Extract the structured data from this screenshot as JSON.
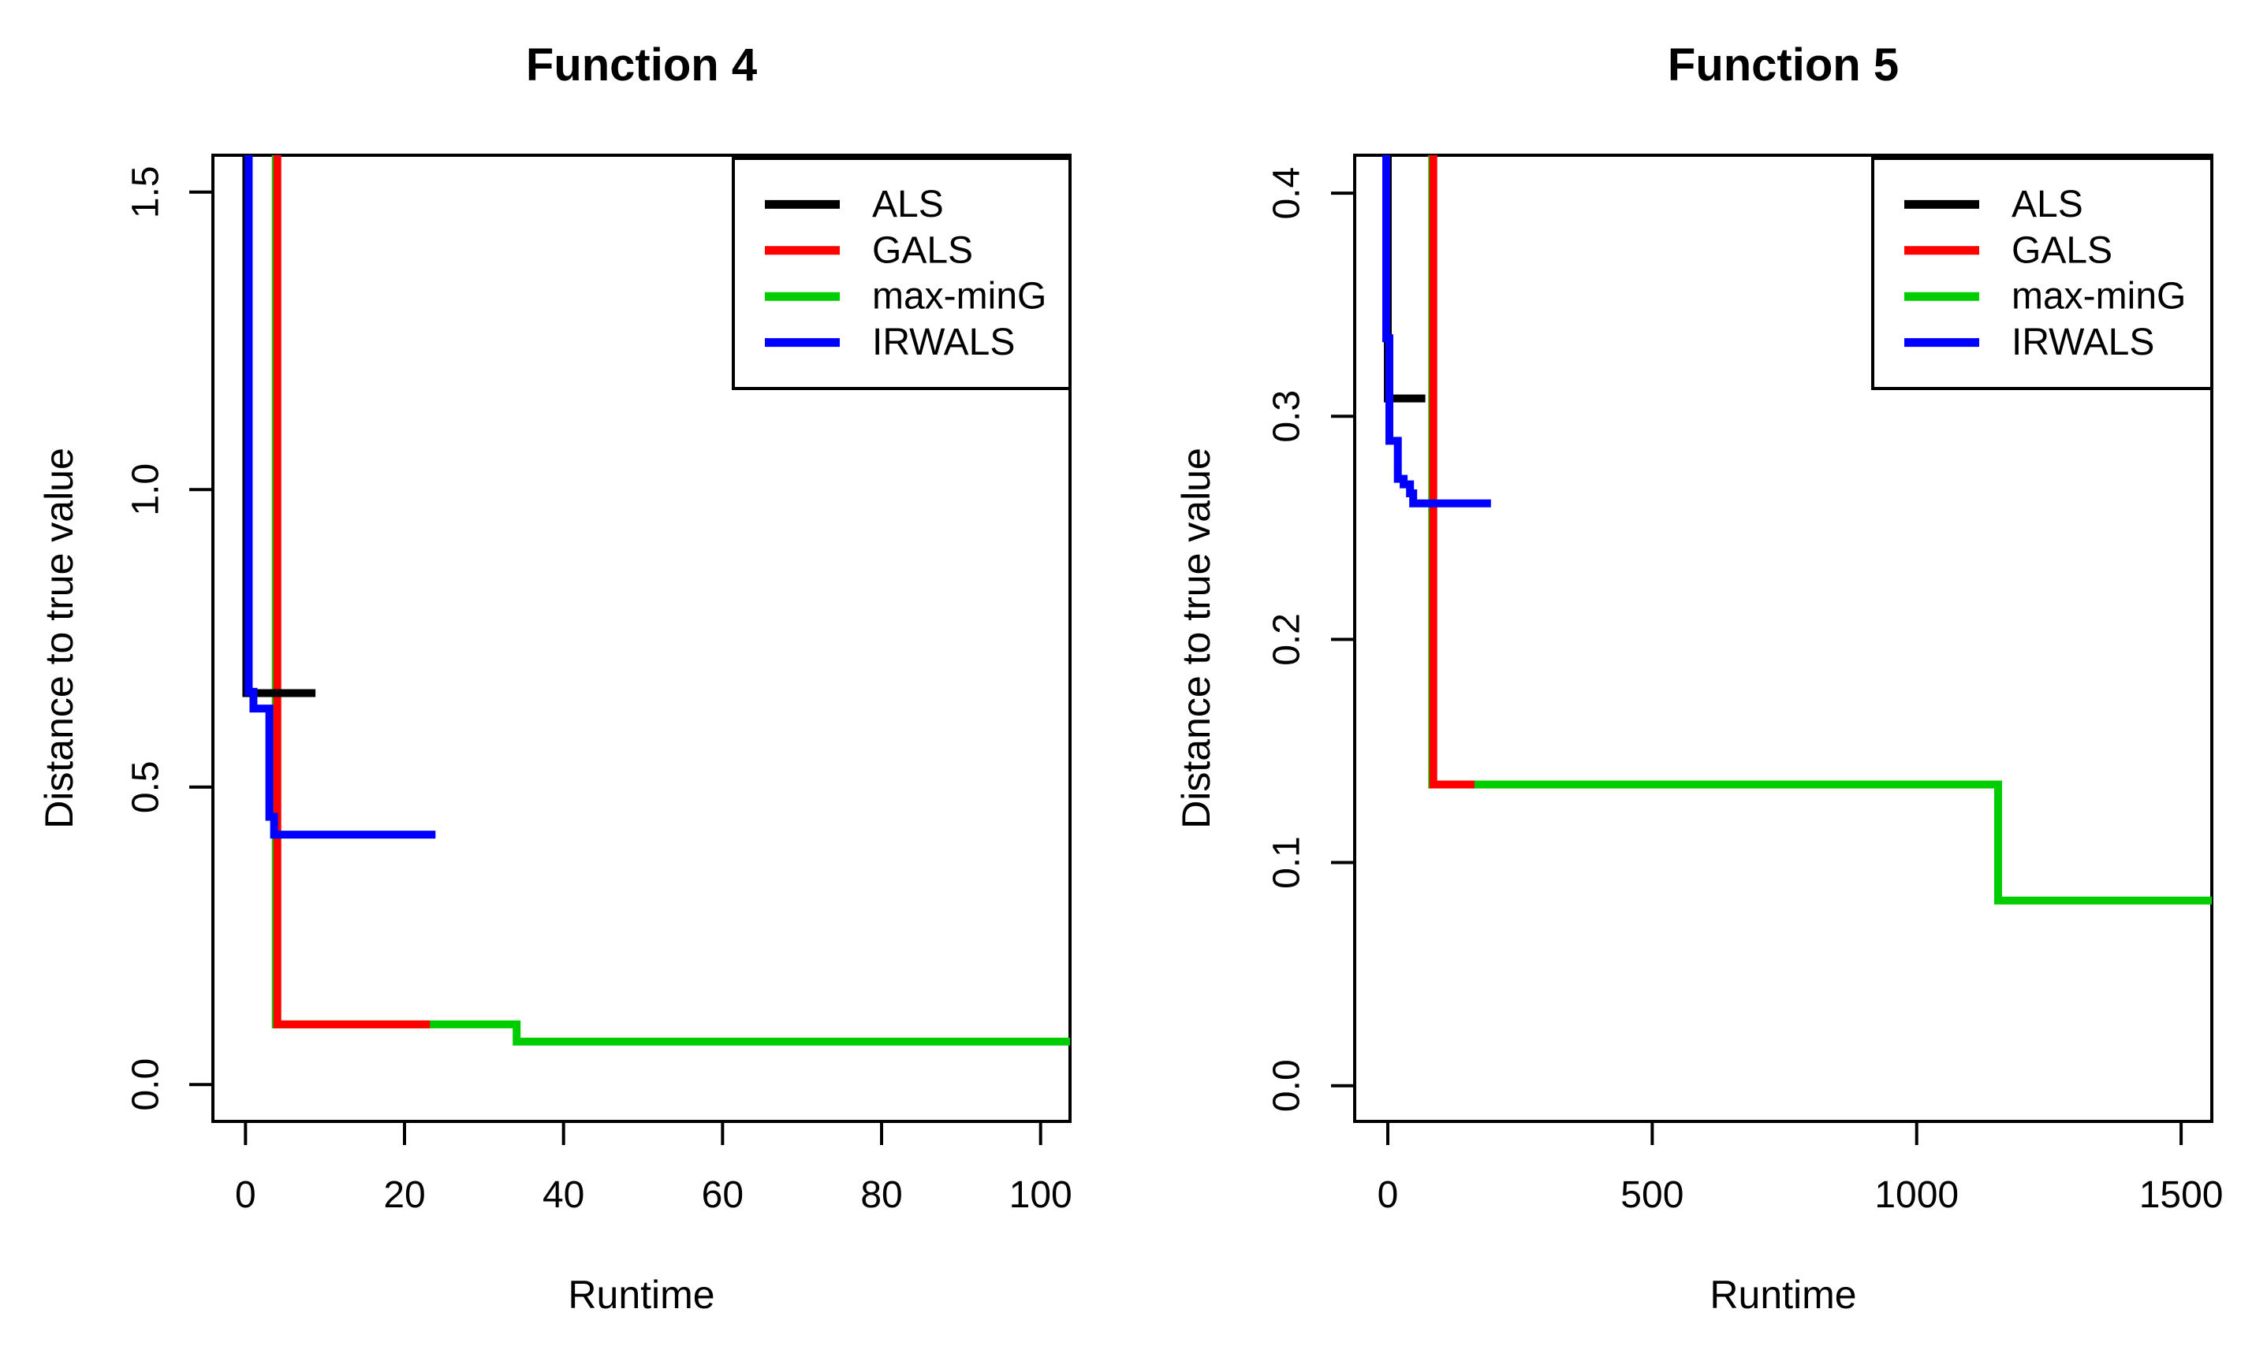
{
  "figure": {
    "background": "#FFFFFF",
    "text_color": "#000000"
  },
  "chart_data": [
    {
      "type": "line",
      "panel": "left",
      "title": "Function 4",
      "xlabel": "Runtime",
      "ylabel": "Distance to true value",
      "x_ticks": [
        0,
        20,
        40,
        60,
        80,
        100
      ],
      "x_tick_labels": [
        "0",
        "20",
        "40",
        "60",
        "80",
        "100"
      ],
      "y_ticks": [
        0,
        0.5,
        1.0,
        1.5
      ],
      "y_tick_labels": [
        "0.0",
        "0.5",
        "1.0",
        "1.5"
      ],
      "xlim": [
        -4.1,
        103.7
      ],
      "ylim": [
        -0.062,
        1.562
      ],
      "grid": false,
      "legend_position": "top-right",
      "legend": [
        {
          "label": "ALS",
          "color": "#000000"
        },
        {
          "label": "GALS",
          "color": "#FF0000"
        },
        {
          "label": "max-minG",
          "color": "#00CD00"
        },
        {
          "label": "IRWALS",
          "color": "#0000FF"
        }
      ],
      "series": [
        {
          "name": "max-minG",
          "color": "#00CD00",
          "points": [
            [
              3.8,
              1.562
            ],
            [
              3.8,
              0.101
            ],
            [
              34.1,
              0.101
            ],
            [
              34.1,
              0.072
            ],
            [
              103.7,
              0.072
            ]
          ]
        },
        {
          "name": "GALS",
          "color": "#FF0000",
          "points": [
            [
              4.0,
              1.562
            ],
            [
              4.0,
              0.101
            ],
            [
              23.2,
              0.101
            ]
          ]
        },
        {
          "name": "ALS",
          "color": "#000000",
          "points": [
            [
              0.1,
              1.562
            ],
            [
              0.1,
              0.658
            ],
            [
              8.8,
              0.658
            ]
          ]
        },
        {
          "name": "IRWALS",
          "color": "#0000FF",
          "points": [
            [
              0.4,
              1.562
            ],
            [
              0.4,
              0.66
            ],
            [
              1.0,
              0.66
            ],
            [
              1.0,
              0.632
            ],
            [
              3.0,
              0.632
            ],
            [
              3.0,
              0.45
            ],
            [
              3.6,
              0.45
            ],
            [
              3.6,
              0.42
            ],
            [
              23.9,
              0.42
            ]
          ]
        }
      ]
    },
    {
      "type": "line",
      "panel": "right",
      "title": "Function 5",
      "xlabel": "Runtime",
      "ylabel": "Distance to true value",
      "x_ticks": [
        0,
        500,
        1000,
        1500
      ],
      "x_tick_labels": [
        "0",
        "500",
        "1000",
        "1500"
      ],
      "y_ticks": [
        0,
        0.1,
        0.2,
        0.3,
        0.4
      ],
      "y_tick_labels": [
        "0.0",
        "0.1",
        "0.2",
        "0.3",
        "0.4"
      ],
      "xlim": [
        -62.6,
        1558
      ],
      "ylim": [
        -0.016,
        0.417
      ],
      "grid": false,
      "legend_position": "top-right",
      "legend": [
        {
          "label": "ALS",
          "color": "#000000"
        },
        {
          "label": "GALS",
          "color": "#FF0000"
        },
        {
          "label": "max-minG",
          "color": "#00CD00"
        },
        {
          "label": "IRWALS",
          "color": "#0000FF"
        }
      ],
      "series": [
        {
          "name": "max-minG",
          "color": "#00CD00",
          "points": [
            [
              84,
              0.417
            ],
            [
              84,
              0.135
            ],
            [
              1154,
              0.135
            ],
            [
              1154,
              0.083
            ],
            [
              1558,
              0.083
            ]
          ]
        },
        {
          "name": "GALS",
          "color": "#FF0000",
          "points": [
            [
              86,
              0.417
            ],
            [
              86,
              0.135
            ],
            [
              164,
              0.135
            ]
          ]
        },
        {
          "name": "ALS",
          "color": "#000000",
          "points": [
            [
              0,
              0.417
            ],
            [
              0,
              0.308
            ],
            [
              71,
              0.308
            ]
          ]
        },
        {
          "name": "IRWALS",
          "color": "#0000FF",
          "points": [
            [
              -3,
              0.417
            ],
            [
              -3,
              0.335
            ],
            [
              3,
              0.335
            ],
            [
              3,
              0.289
            ],
            [
              19,
              0.289
            ],
            [
              19,
              0.272
            ],
            [
              30,
              0.272
            ],
            [
              30,
              0.2695
            ],
            [
              42,
              0.2695
            ],
            [
              42,
              0.2655
            ],
            [
              48,
              0.2655
            ],
            [
              48,
              0.261
            ],
            [
              195,
              0.261
            ]
          ]
        }
      ]
    }
  ]
}
